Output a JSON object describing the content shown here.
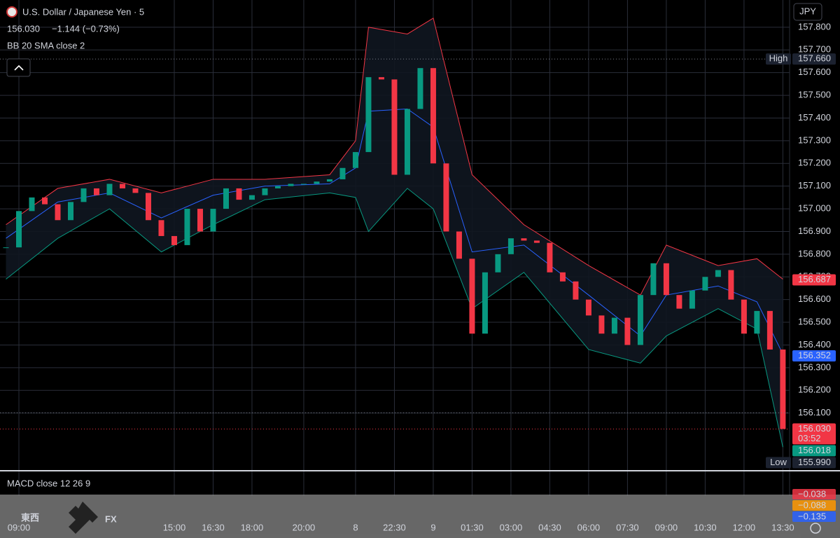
{
  "chart_data": {
    "type": "candlestick",
    "title": "U.S. Dollar / Japanese Yen · 5",
    "last_price": {
      "value": 156.03,
      "label": "156.030"
    },
    "change": "−1.144 (−0.73%)",
    "indicator": "BB 20 SMA close 2",
    "currency": "JPY",
    "color_up": "#089981",
    "color_down": "#f23645",
    "x": [
      -0.5,
      0,
      0.5,
      1,
      1.5,
      2,
      2.5,
      3,
      3.5,
      4,
      4.5,
      5,
      5.5,
      6,
      6.5,
      7,
      7.5,
      8,
      8.5,
      9,
      9.5,
      10,
      10.5,
      11,
      11.5,
      12,
      12.5,
      13,
      13.5,
      14,
      14.5,
      15,
      15.5,
      16,
      16.5,
      17,
      17.5,
      18,
      18.5,
      19,
      19.5,
      20,
      20.5,
      21,
      21.5,
      22,
      22.5,
      23,
      23.5,
      24,
      24.5,
      25,
      25.5,
      26,
      26.5,
      27,
      27.5,
      28,
      28.5,
      29,
      29.5
    ],
    "values": [
      156.83,
      156.99,
      157.05,
      157.02,
      156.95,
      157.03,
      157.09,
      157.06,
      157.11,
      157.09,
      157.07,
      156.95,
      156.88,
      156.84,
      157.0,
      156.9,
      157.0,
      157.09,
      157.04,
      157.06,
      157.09,
      157.1,
      157.11,
      157.11,
      157.12,
      157.13,
      157.18,
      157.25,
      157.58,
      157.57,
      157.15,
      157.44,
      157.62,
      157.2,
      156.9,
      156.78,
      156.45,
      156.72,
      156.8,
      156.87,
      156.86,
      156.85,
      156.72,
      156.68,
      156.6,
      156.53,
      156.45,
      156.52,
      156.4,
      156.62,
      156.76,
      156.62,
      156.56,
      156.64,
      156.7,
      156.73,
      156.6,
      156.45,
      156.55,
      156.38,
      156.03
    ],
    "bands": {
      "x": [
        -0.5,
        1.5,
        3.5,
        5.5,
        7.5,
        9.5,
        12,
        13,
        13.5,
        15,
        16,
        17.5,
        19.5,
        22,
        24,
        25,
        27,
        28.5,
        29.5
      ],
      "upper": [
        156.93,
        157.09,
        157.13,
        157.07,
        157.13,
        157.13,
        157.15,
        157.3,
        157.8,
        157.77,
        157.84,
        157.15,
        156.93,
        156.75,
        156.62,
        156.84,
        156.75,
        156.78,
        156.69
      ],
      "middle": [
        156.87,
        157.03,
        157.07,
        156.96,
        157.06,
        157.1,
        157.11,
        157.18,
        157.43,
        157.44,
        157.36,
        156.81,
        156.84,
        156.62,
        156.44,
        156.62,
        156.66,
        156.59,
        156.36
      ],
      "lower": [
        156.69,
        156.87,
        157.0,
        156.81,
        156.93,
        157.04,
        157.07,
        157.05,
        156.9,
        157.09,
        157.0,
        156.56,
        156.72,
        156.38,
        156.32,
        156.44,
        156.56,
        156.47,
        155.95
      ],
      "colors": [
        "#f23645",
        "#2962ff",
        "#089981"
      ]
    },
    "xlim": [
      -0.73,
      29.76
    ],
    "ylim": [
      155.852,
      157.92
    ],
    "yticks": [
      {
        "value": 157.8,
        "label": "157.800"
      },
      {
        "value": 157.7,
        "label": "157.700"
      },
      {
        "value": 157.6,
        "label": "157.600"
      },
      {
        "value": 157.5,
        "label": "157.500"
      },
      {
        "value": 157.4,
        "label": "157.400"
      },
      {
        "value": 157.3,
        "label": "157.300"
      },
      {
        "value": 157.2,
        "label": "157.200"
      },
      {
        "value": 157.1,
        "label": "157.100"
      },
      {
        "value": 157.0,
        "label": "157.000"
      },
      {
        "value": 156.9,
        "label": "156.900"
      },
      {
        "value": 156.8,
        "label": "156.800"
      },
      {
        "value": 156.7,
        "label": "156.700"
      },
      {
        "value": 156.6,
        "label": "156.600"
      },
      {
        "value": 156.5,
        "label": "156.500"
      },
      {
        "value": 156.4,
        "label": "156.400"
      },
      {
        "value": 156.3,
        "label": "156.300"
      },
      {
        "value": 156.2,
        "label": "156.200"
      },
      {
        "value": 156.1,
        "label": "156.100"
      }
    ],
    "xticks": [
      {
        "value": 0,
        "label": "09:00"
      },
      {
        "value": 6,
        "label": "15:00"
      },
      {
        "value": 7.5,
        "label": "16:30"
      },
      {
        "value": 9,
        "label": "18:00"
      },
      {
        "value": 11,
        "label": "20:00"
      },
      {
        "value": 13,
        "label": "8"
      },
      {
        "value": 14.5,
        "label": "22:30"
      },
      {
        "value": 16,
        "label": "9"
      },
      {
        "value": 17.5,
        "label": "01:30"
      },
      {
        "value": 19,
        "label": "03:00"
      },
      {
        "value": 20.5,
        "label": "04:30"
      },
      {
        "value": 22,
        "label": "06:00"
      },
      {
        "value": 23.5,
        "label": "07:30"
      },
      {
        "value": 25,
        "label": "09:00"
      },
      {
        "value": 26.5,
        "label": "10:30"
      },
      {
        "value": 28,
        "label": "12:00"
      },
      {
        "value": 29.5,
        "label": "13:30"
      }
    ],
    "price_badges": [
      {
        "tag": "High",
        "value": 157.66,
        "label": "157.660",
        "color": "#1c2230"
      },
      {
        "value": 156.687,
        "label": "156.687",
        "color": "#f23645"
      },
      {
        "value": 156.352,
        "label": "156.352",
        "color": "#2962ff"
      },
      {
        "value": 156.03,
        "label": "156.030",
        "color": "#f23645",
        "countdown": "03:52"
      },
      {
        "value": 156.018,
        "label": "156.018",
        "color": "#089981"
      },
      {
        "tag": "Low",
        "value": 155.99,
        "label": "155.990",
        "color": "#1c2230"
      }
    ],
    "macd": {
      "title": "MACD close 12 26 9",
      "labels": [
        {
          "value": -0.038,
          "label": "−0.038",
          "color": "#f23645"
        },
        {
          "value": -0.088,
          "label": "−0.088",
          "color": "#ff9800"
        },
        {
          "value": -0.135,
          "label": "−0.135",
          "color": "#2962ff"
        }
      ]
    },
    "watermark": {
      "left": "東西",
      "right": "FX"
    }
  }
}
